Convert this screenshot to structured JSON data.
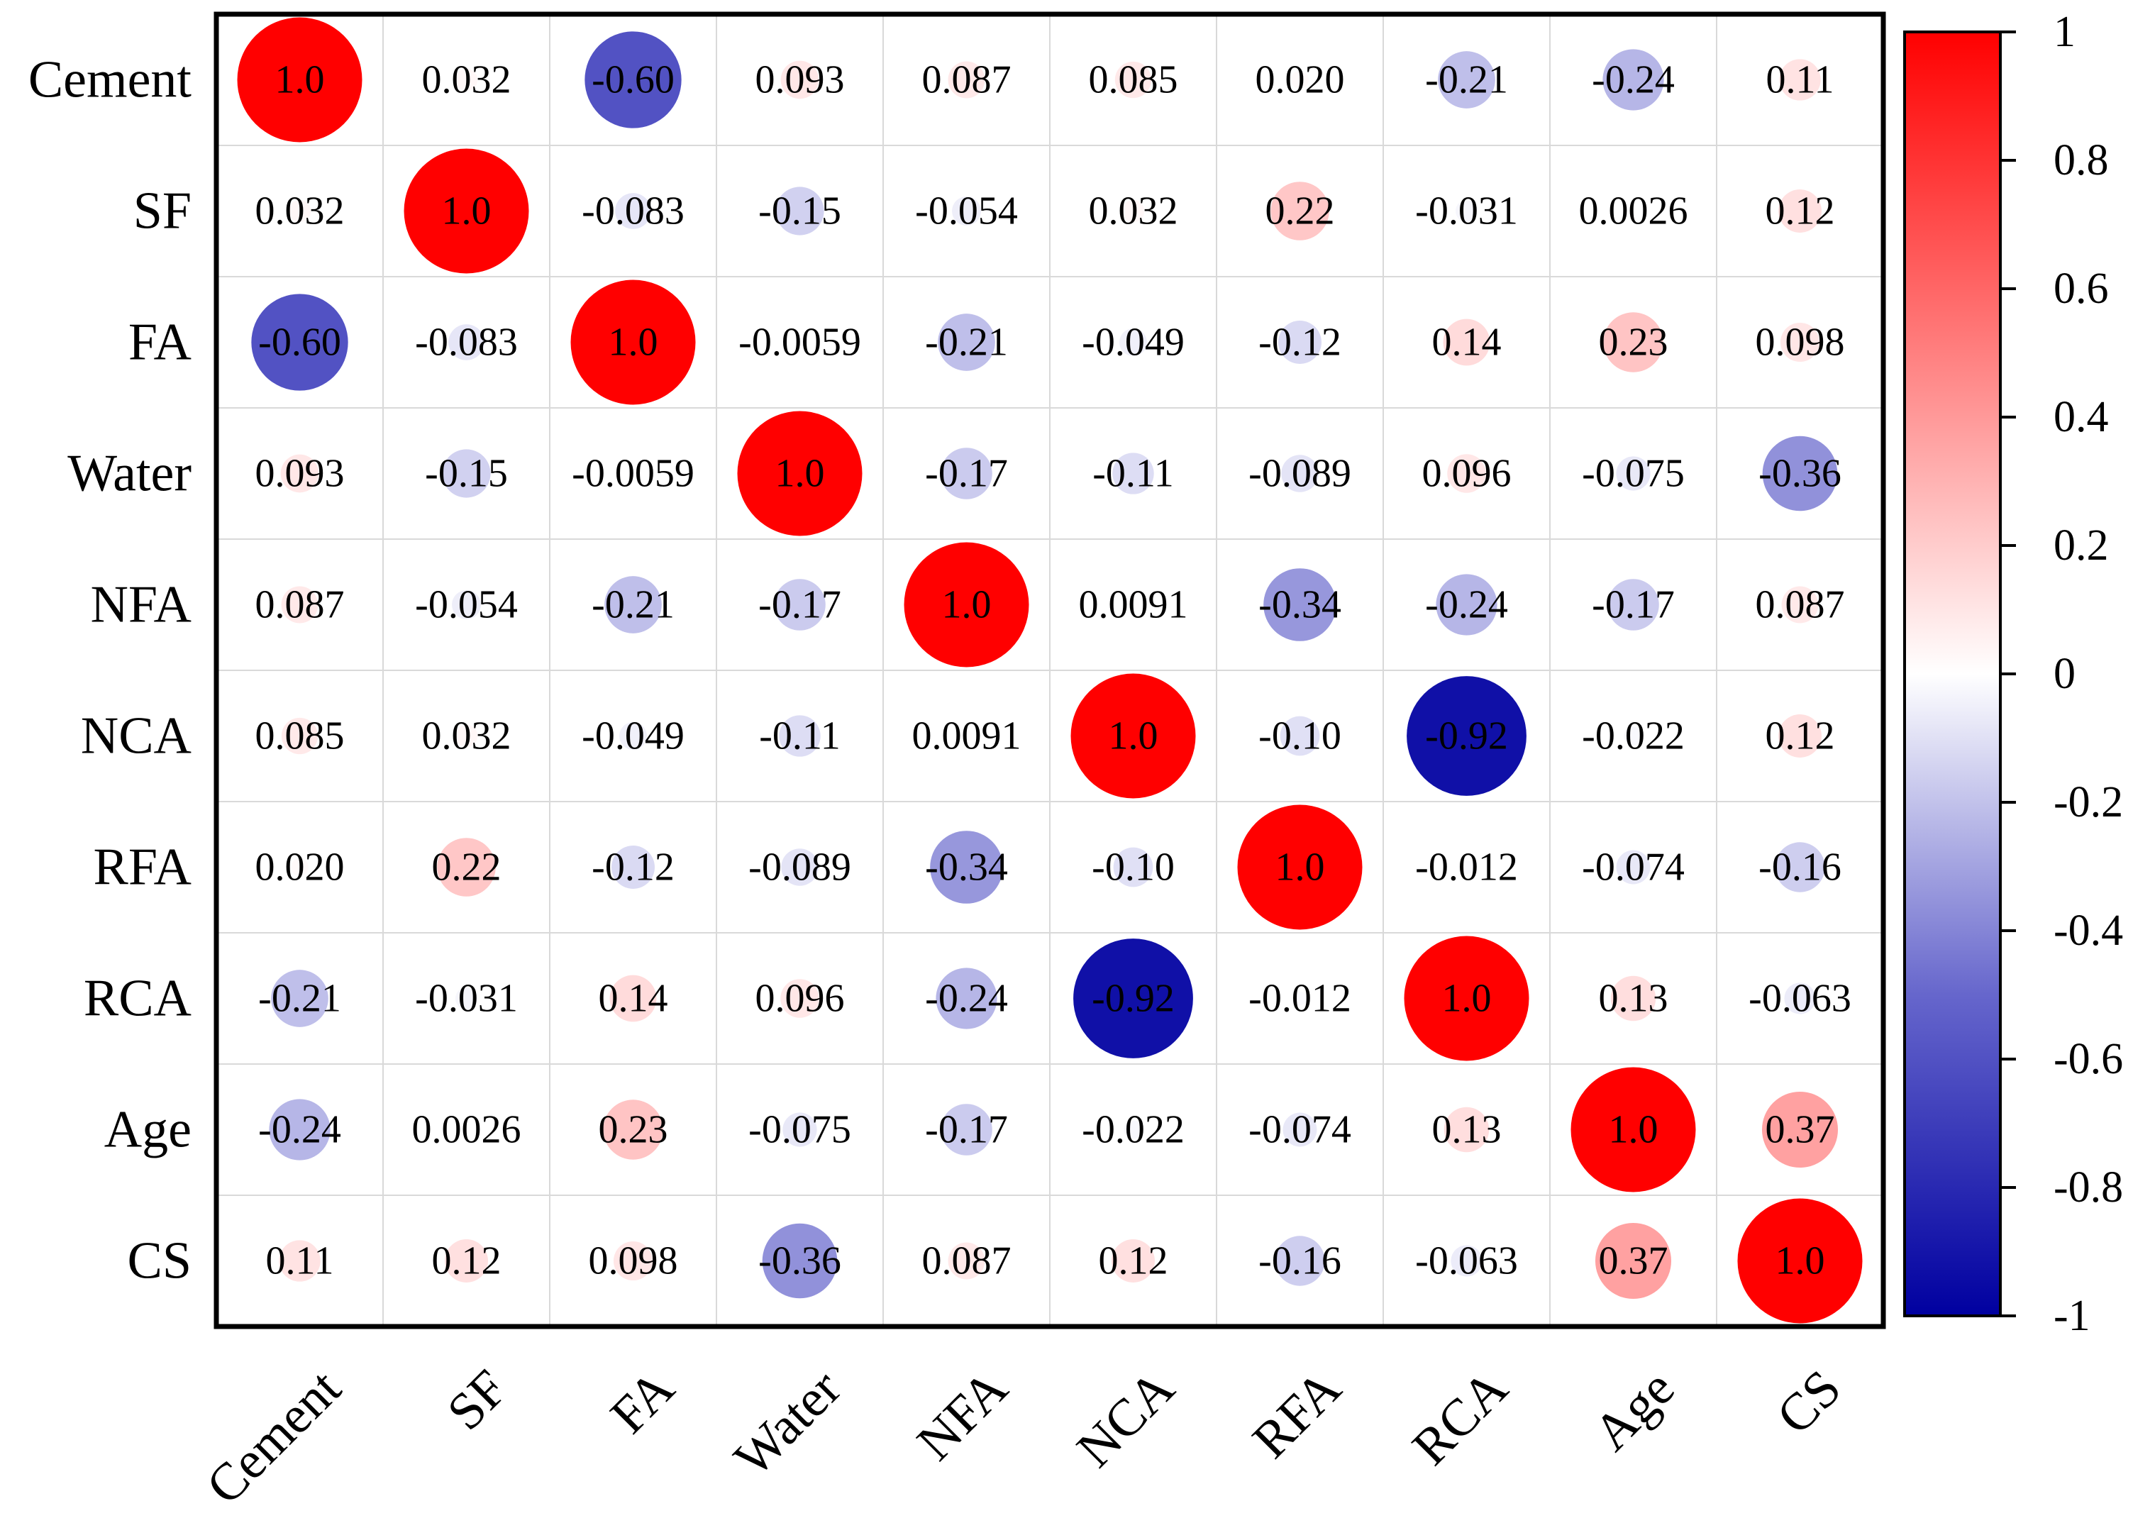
{
  "chart_data": {
    "type": "heatmap",
    "title": "",
    "variables": [
      "Cement",
      "SF",
      "FA",
      "Water",
      "NFA",
      "NCA",
      "RFA",
      "RCA",
      "Age",
      "CS"
    ],
    "matrix": [
      [
        1.0,
        0.032,
        -0.6,
        0.093,
        0.087,
        0.085,
        0.02,
        -0.21,
        -0.24,
        0.11
      ],
      [
        0.032,
        1.0,
        -0.083,
        -0.15,
        -0.054,
        0.032,
        0.22,
        -0.031,
        0.0026,
        0.12
      ],
      [
        -0.6,
        -0.083,
        1.0,
        -0.0059,
        -0.21,
        -0.049,
        -0.12,
        0.14,
        0.23,
        0.098
      ],
      [
        0.093,
        -0.15,
        -0.0059,
        1.0,
        -0.17,
        -0.11,
        -0.089,
        0.096,
        -0.075,
        -0.36
      ],
      [
        0.087,
        -0.054,
        -0.21,
        -0.17,
        1.0,
        0.0091,
        -0.34,
        -0.24,
        -0.17,
        0.087
      ],
      [
        0.085,
        0.032,
        -0.049,
        -0.11,
        0.0091,
        1.0,
        -0.1,
        -0.92,
        -0.022,
        0.12
      ],
      [
        0.02,
        0.22,
        -0.12,
        -0.089,
        -0.34,
        -0.1,
        1.0,
        -0.012,
        -0.074,
        -0.16
      ],
      [
        -0.21,
        -0.031,
        0.14,
        0.096,
        -0.24,
        -0.92,
        -0.012,
        1.0,
        0.13,
        -0.063
      ],
      [
        -0.24,
        0.0026,
        0.23,
        -0.075,
        -0.17,
        -0.022,
        -0.074,
        0.13,
        1.0,
        0.37
      ],
      [
        0.11,
        0.12,
        0.098,
        -0.36,
        0.087,
        0.12,
        -0.16,
        -0.063,
        0.37,
        1.0
      ]
    ],
    "cell_labels": [
      [
        "1.0",
        "0.032",
        "-0.60",
        "0.093",
        "0.087",
        "0.085",
        "0.020",
        "-0.21",
        "-0.24",
        "0.11"
      ],
      [
        "0.032",
        "1.0",
        "-0.083",
        "-0.15",
        "-0.054",
        "0.032",
        "0.22",
        "-0.031",
        "0.0026",
        "0.12"
      ],
      [
        "-0.60",
        "-0.083",
        "1.0",
        "-0.0059",
        "-0.21",
        "-0.049",
        "-0.12",
        "0.14",
        "0.23",
        "0.098"
      ],
      [
        "0.093",
        "-0.15",
        "-0.0059",
        "1.0",
        "-0.17",
        "-0.11",
        "-0.089",
        "0.096",
        "-0.075",
        "-0.36"
      ],
      [
        "0.087",
        "-0.054",
        "-0.21",
        "-0.17",
        "1.0",
        "0.0091",
        "-0.34",
        "-0.24",
        "-0.17",
        "0.087"
      ],
      [
        "0.085",
        "0.032",
        "-0.049",
        "-0.11",
        "0.0091",
        "1.0",
        "-0.10",
        "-0.92",
        "-0.022",
        "0.12"
      ],
      [
        "0.020",
        "0.22",
        "-0.12",
        "-0.089",
        "-0.34",
        "-0.10",
        "1.0",
        "-0.012",
        "-0.074",
        "-0.16"
      ],
      [
        "-0.21",
        "-0.031",
        "0.14",
        "0.096",
        "-0.24",
        "-0.92",
        "-0.012",
        "1.0",
        "0.13",
        "-0.063"
      ],
      [
        "-0.24",
        "0.0026",
        "0.23",
        "-0.075",
        "-0.17",
        "-0.022",
        "-0.074",
        "0.13",
        "1.0",
        "0.37"
      ],
      [
        "0.11",
        "0.12",
        "0.098",
        "-0.36",
        "0.087",
        "0.12",
        "-0.16",
        "-0.063",
        "0.37",
        "1.0"
      ]
    ],
    "colorbar": {
      "range": [
        -1,
        1
      ],
      "ticks": [
        1,
        0.8,
        0.6,
        0.4,
        0.2,
        0,
        -0.2,
        -0.4,
        -0.6,
        -0.8,
        -1
      ],
      "tick_labels": [
        "1",
        "0.8",
        "0.6",
        "0.4",
        "0.2",
        "0",
        "-0.2",
        "-0.4",
        "-0.6",
        "-0.8",
        "-1"
      ],
      "colors": {
        "positive": "#ff0000",
        "neutral": "#ffffff",
        "mid_negative": "#6666cc",
        "negative": "#0000a0"
      }
    },
    "marker": "circle",
    "marker_size_encodes": "abs(correlation)",
    "legend": "colorbar-right"
  }
}
